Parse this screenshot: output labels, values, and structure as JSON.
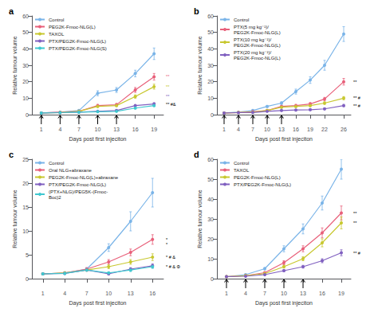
{
  "chart_data": [
    {
      "type": "line",
      "title": "a",
      "xlabel": "Days post first injeciton",
      "ylabel": "Relative tumour volume",
      "x": [
        1,
        4,
        7,
        10,
        13,
        16,
        19
      ],
      "xlim": [
        -0.5,
        20.5
      ],
      "xticks": [
        1,
        4,
        7,
        10,
        13,
        16,
        19
      ],
      "ylim": [
        0,
        60
      ],
      "yticks": [
        0,
        10,
        20,
        30,
        40,
        50,
        60
      ],
      "grid": false,
      "legend": "upper left",
      "marker": "circle",
      "series": [
        {
          "name": "Control",
          "color": "#7ab4e8",
          "values": [
            1,
            1.5,
            2.5,
            13,
            15,
            25,
            37
          ],
          "err": [
            0.1,
            0.2,
            0.3,
            1.5,
            1.5,
            2.0,
            3.5
          ]
        },
        {
          "name": "PEG2K-Fmoc-NLG(L)",
          "color": "#e8607a",
          "values": [
            1,
            1.5,
            2.0,
            5.5,
            6.0,
            15,
            23
          ],
          "err": [
            0.1,
            0.2,
            0.3,
            0.7,
            0.8,
            1.5,
            2.0
          ]
        },
        {
          "name": "TAXOL",
          "color": "#c8c830",
          "values": [
            1,
            1.3,
            2.0,
            5.0,
            5.5,
            11,
            17
          ],
          "err": [
            0.1,
            0.2,
            0.2,
            0.5,
            0.6,
            1.0,
            1.5
          ]
        },
        {
          "name": "PTX/PEG2K-Fmoc-NLG(L)",
          "color": "#8060c0",
          "values": [
            1,
            1.2,
            1.5,
            2.0,
            2.5,
            5.5,
            6.5
          ],
          "err": [
            0.1,
            0.15,
            0.2,
            0.3,
            0.4,
            0.6,
            0.7
          ]
        },
        {
          "name": "PTX/PEG2K-Fmoc-NLG(S)",
          "color": "#40c8d0",
          "values": [
            1,
            1.2,
            1.5,
            1.8,
            2.0,
            4.0,
            5.5
          ],
          "err": [
            0.1,
            0.15,
            0.2,
            0.25,
            0.3,
            0.5,
            0.6
          ]
        }
      ],
      "arrow_x": [
        1,
        4,
        7,
        10,
        13
      ],
      "annotations": [
        {
          "y": 23,
          "text": "**",
          "color": "#e8607a"
        },
        {
          "y": 17,
          "text": "**",
          "color": "#c8c830"
        },
        {
          "y": 11,
          "text": "**",
          "color": "#8060c0"
        },
        {
          "y": 6.5,
          "text": "** #&",
          "color": "#000000"
        }
      ]
    },
    {
      "type": "line",
      "title": "b",
      "xlabel": "Days post first injeciton",
      "ylabel": "Relative tumour volume",
      "x": [
        1,
        4,
        7,
        10,
        13,
        16,
        19,
        22,
        26
      ],
      "xlim": [
        -0.5,
        27.5
      ],
      "xticks": [
        1,
        4,
        7,
        10,
        13,
        16,
        19,
        22,
        26
      ],
      "ylim": [
        0,
        60
      ],
      "yticks": [
        0,
        10,
        20,
        30,
        40,
        50,
        60
      ],
      "grid": false,
      "legend": "upper left",
      "marker": "circle",
      "series": [
        {
          "name": "Control",
          "color": "#7ab4e8",
          "values": [
            1,
            1.5,
            2.5,
            5,
            7,
            14,
            21,
            30,
            49
          ],
          "err": [
            0.1,
            0.2,
            0.3,
            0.6,
            0.8,
            1.5,
            2.0,
            3.0,
            4.5
          ]
        },
        {
          "name": "PTX(5 mg kg⁻¹)/\nPEG2K-Fmoc-NLG(L)",
          "color": "#e8607a",
          "values": [
            1,
            1.3,
            1.8,
            2.5,
            5.0,
            5.5,
            6.5,
            9.5,
            20
          ],
          "err": [
            0.1,
            0.15,
            0.2,
            0.4,
            0.6,
            0.7,
            0.8,
            1.0,
            2.0
          ]
        },
        {
          "name": "PTX(10 mg kg⁻¹)/\nPEG2K-Fmoc-NLG(L)",
          "color": "#c8c830",
          "values": [
            1,
            1.3,
            1.5,
            2.5,
            4.5,
            5.0,
            5.5,
            7.0,
            10
          ],
          "err": [
            0.1,
            0.15,
            0.2,
            0.4,
            0.5,
            0.6,
            0.7,
            0.8,
            1.0
          ]
        },
        {
          "name": "PTX(20 mg kg⁻¹)/\nPEG2K-Fmoc-NLG(L)",
          "color": "#8060c0",
          "values": [
            1,
            1.2,
            1.3,
            2.0,
            2.5,
            2.8,
            3.0,
            3.5,
            5.5
          ],
          "err": [
            0.1,
            0.15,
            0.15,
            0.3,
            0.4,
            0.4,
            0.5,
            0.5,
            0.7
          ]
        }
      ],
      "arrow_x": [
        1,
        4,
        7,
        10,
        13
      ],
      "annotations": [
        {
          "y": 20,
          "text": "**",
          "color": "#000000"
        },
        {
          "y": 10,
          "text": "** #",
          "color": "#000000"
        },
        {
          "y": 5.5,
          "text": "** #",
          "color": "#000000"
        }
      ]
    },
    {
      "type": "line",
      "title": "c",
      "xlabel": "Days post first injeciton",
      "ylabel": "Relative tumour volume",
      "x": [
        1,
        4,
        7,
        10,
        13,
        16
      ],
      "xlim": [
        -0.5,
        17.5
      ],
      "xticks": [
        1,
        4,
        7,
        10,
        13,
        16
      ],
      "ylim": [
        0,
        25
      ],
      "yticks": [
        0,
        5,
        10,
        15,
        20,
        25
      ],
      "grid": false,
      "legend": "upper left",
      "marker": "circle",
      "series": [
        {
          "name": "Control",
          "color": "#7ab4e8",
          "values": [
            1,
            1.2,
            2.0,
            6.5,
            12,
            18
          ],
          "err": [
            0.1,
            0.2,
            0.3,
            0.8,
            2.0,
            3.0
          ]
        },
        {
          "name": "Oral NLG+abraxane",
          "color": "#e8607a",
          "values": [
            1,
            1.2,
            2.0,
            3.5,
            5.5,
            8.2
          ],
          "err": [
            0.1,
            0.15,
            0.3,
            0.5,
            0.7,
            1.0
          ]
        },
        {
          "name": "PEG2K-Fmoc-NLG(L)+abraxane",
          "color": "#c8c830",
          "values": [
            1,
            1.2,
            1.8,
            2.5,
            3.5,
            4.5
          ],
          "err": [
            0.1,
            0.15,
            0.2,
            0.4,
            0.5,
            0.7
          ]
        },
        {
          "name": "PTX/PEG2K-Fmoc-NLG(L)",
          "color": "#8060c0",
          "values": [
            1,
            1.1,
            1.8,
            1.0,
            2.0,
            2.7
          ],
          "err": [
            0.1,
            0.15,
            0.2,
            0.2,
            0.3,
            0.4
          ]
        },
        {
          "name": "(PTX+NLG)/PEG5K-(Fmoc-\nBoc)2",
          "color": "#40c8d0",
          "values": [
            1,
            1.1,
            1.8,
            1.2,
            1.8,
            2.5
          ],
          "err": [
            0.1,
            0.1,
            0.2,
            0.2,
            0.3,
            0.35
          ]
        }
      ],
      "annotations": [
        {
          "y": 8.2,
          "text": "*",
          "color": "#000000"
        },
        {
          "y": 7.2,
          "text": "*",
          "color": "#000000"
        },
        {
          "y": 4.5,
          "text": "* # &",
          "color": "#000000"
        },
        {
          "y": 2.5,
          "text": "* # & Φ",
          "color": "#000000"
        }
      ]
    },
    {
      "type": "line",
      "title": "d",
      "xlabel": "Days post first injeciton",
      "ylabel": "Relative tumour volume",
      "x": [
        1,
        4,
        7,
        10,
        13,
        16,
        19
      ],
      "xlim": [
        -0.5,
        20.5
      ],
      "xticks": [
        1,
        4,
        7,
        10,
        13,
        16,
        19
      ],
      "ylim": [
        0,
        60
      ],
      "yticks": [
        0,
        10,
        20,
        30,
        40,
        50,
        60
      ],
      "grid": false,
      "legend": "upper left",
      "marker": "circle",
      "series": [
        {
          "name": "Control",
          "color": "#7ab4e8",
          "values": [
            1,
            2,
            5,
            15,
            25,
            38,
            55
          ],
          "err": [
            0.1,
            0.3,
            0.6,
            1.5,
            2.5,
            3.5,
            5.0
          ]
        },
        {
          "name": "TAXOL",
          "color": "#e8607a",
          "values": [
            1,
            1.5,
            3.0,
            8.0,
            15,
            23,
            33
          ],
          "err": [
            0.1,
            0.2,
            0.4,
            1.0,
            1.5,
            2.5,
            3.5
          ]
        },
        {
          "name": "PEG2K-Fmoc-NLG(L)",
          "color": "#c8c830",
          "values": [
            1,
            1.5,
            2.5,
            6.0,
            10,
            18,
            28
          ],
          "err": [
            0.1,
            0.2,
            0.3,
            0.7,
            1.0,
            2.0,
            3.0
          ]
        },
        {
          "name": "PTX/PEG2K-Fmoc-NLG(L)",
          "color": "#8060c0",
          "values": [
            1,
            1.2,
            2.0,
            4.0,
            6.0,
            9.0,
            13
          ],
          "err": [
            0.1,
            0.15,
            0.3,
            0.5,
            0.7,
            1.0,
            1.5
          ]
        }
      ],
      "arrow_x": [
        1,
        4,
        7,
        10,
        13
      ],
      "annotations": [
        {
          "y": 33,
          "text": "**",
          "color": "#000000"
        },
        {
          "y": 28,
          "text": "**",
          "color": "#000000"
        },
        {
          "y": 13,
          "text": "** #",
          "color": "#000000"
        }
      ]
    }
  ]
}
